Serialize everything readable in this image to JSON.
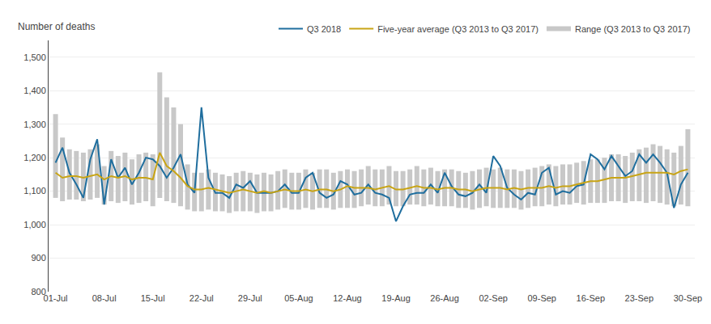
{
  "chart_data": {
    "type": "line",
    "ylabel": "Number of deaths",
    "categories": [
      "01-Jul",
      null,
      null,
      null,
      null,
      null,
      null,
      "08-Jul",
      null,
      null,
      null,
      null,
      null,
      null,
      "15-Jul",
      null,
      null,
      null,
      null,
      null,
      null,
      "22-Jul",
      null,
      null,
      null,
      null,
      null,
      null,
      "29-Jul",
      null,
      null,
      null,
      null,
      null,
      null,
      "05-Aug",
      null,
      null,
      null,
      null,
      null,
      null,
      "12-Aug",
      null,
      null,
      null,
      null,
      null,
      null,
      "19-Aug",
      null,
      null,
      null,
      null,
      null,
      null,
      "26-Aug",
      null,
      null,
      null,
      null,
      null,
      null,
      "02-Sep",
      null,
      null,
      null,
      null,
      null,
      null,
      "09-Sep",
      null,
      null,
      null,
      null,
      null,
      null,
      "16-Sep",
      null,
      null,
      null,
      null,
      null,
      null,
      "23-Sep",
      null,
      null,
      null,
      null,
      null,
      null,
      "30-Sep"
    ],
    "series": [
      {
        "name": "Q3 2018",
        "type": "line",
        "color": "#1f6e9e",
        "values": [
          1185,
          1230,
          1155,
          1120,
          1080,
          1195,
          1255,
          1060,
          1195,
          1140,
          1170,
          1120,
          1155,
          1200,
          1195,
          1175,
          1140,
          1170,
          1210,
          1120,
          1095,
          1350,
          1140,
          1095,
          1095,
          1080,
          1120,
          1110,
          1130,
          1095,
          1095,
          1095,
          1100,
          1120,
          1095,
          1095,
          1140,
          1155,
          1095,
          1080,
          1090,
          1130,
          1120,
          1090,
          1095,
          1120,
          1095,
          1090,
          1080,
          1010,
          1055,
          1090,
          1095,
          1095,
          1120,
          1095,
          1155,
          1115,
          1090,
          1085,
          1095,
          1120,
          1095,
          1205,
          1175,
          1110,
          1090,
          1075,
          1095,
          1090,
          1155,
          1170,
          1090,
          1100,
          1095,
          1115,
          1120,
          1210,
          1195,
          1165,
          1205,
          1175,
          1145,
          1160,
          1210,
          1185,
          1210,
          1185,
          1155,
          1050,
          1120,
          1155
        ]
      },
      {
        "name": "Five-year average (Q3 2013 to Q3 2017)",
        "type": "line",
        "color": "#c8a415",
        "values": [
          1155,
          1140,
          1145,
          1145,
          1140,
          1145,
          1150,
          1135,
          1145,
          1140,
          1145,
          1135,
          1140,
          1140,
          1135,
          1215,
          1175,
          1160,
          1140,
          1115,
          1105,
          1105,
          1110,
          1105,
          1100,
          1095,
          1100,
          1105,
          1100,
          1095,
          1100,
          1095,
          1100,
          1105,
          1100,
          1100,
          1105,
          1100,
          1105,
          1105,
          1100,
          1105,
          1115,
          1110,
          1110,
          1110,
          1105,
          1110,
          1115,
          1105,
          1105,
          1110,
          1115,
          1110,
          1110,
          1105,
          1110,
          1110,
          1105,
          1105,
          1100,
          1105,
          1110,
          1110,
          1110,
          1105,
          1110,
          1105,
          1110,
          1110,
          1110,
          1115,
          1110,
          1115,
          1115,
          1120,
          1125,
          1130,
          1130,
          1135,
          1140,
          1140,
          1140,
          1145,
          1150,
          1155,
          1155,
          1155,
          1155,
          1150,
          1160,
          1165
        ]
      },
      {
        "name": "Range (Q3 2013 to Q3 2017)",
        "type": "range",
        "color": "#c8c8c8",
        "low": [
          1080,
          1070,
          1075,
          1075,
          1070,
          1075,
          1080,
          1060,
          1070,
          1065,
          1070,
          1060,
          1065,
          1070,
          1055,
          1080,
          1070,
          1065,
          1055,
          1045,
          1040,
          1040,
          1045,
          1040,
          1040,
          1035,
          1040,
          1040,
          1040,
          1035,
          1040,
          1040,
          1045,
          1050,
          1045,
          1045,
          1050,
          1045,
          1050,
          1050,
          1045,
          1050,
          1050,
          1050,
          1055,
          1060,
          1055,
          1055,
          1060,
          1055,
          1055,
          1060,
          1060,
          1055,
          1060,
          1055,
          1055,
          1055,
          1050,
          1050,
          1045,
          1050,
          1055,
          1050,
          1050,
          1050,
          1050,
          1045,
          1050,
          1055,
          1055,
          1060,
          1055,
          1060,
          1060,
          1065,
          1060,
          1065,
          1065,
          1065,
          1070,
          1070,
          1065,
          1070,
          1070,
          1065,
          1070,
          1065,
          1060,
          1055,
          1060,
          1055
        ],
        "high": [
          1330,
          1260,
          1225,
          1220,
          1215,
          1225,
          1240,
          1175,
          1220,
          1205,
          1215,
          1195,
          1210,
          1215,
          1210,
          1455,
          1380,
          1350,
          1300,
          1180,
          1155,
          1155,
          1165,
          1155,
          1150,
          1145,
          1155,
          1160,
          1155,
          1150,
          1155,
          1150,
          1160,
          1165,
          1155,
          1155,
          1165,
          1155,
          1165,
          1165,
          1155,
          1160,
          1165,
          1160,
          1165,
          1175,
          1165,
          1165,
          1175,
          1160,
          1160,
          1165,
          1175,
          1165,
          1170,
          1160,
          1165,
          1165,
          1160,
          1155,
          1160,
          1165,
          1170,
          1165,
          1170,
          1165,
          1165,
          1160,
          1165,
          1170,
          1175,
          1180,
          1175,
          1180,
          1180,
          1185,
          1190,
          1195,
          1195,
          1200,
          1210,
          1210,
          1205,
          1215,
          1225,
          1230,
          1240,
          1235,
          1225,
          1215,
          1235,
          1285
        ]
      }
    ],
    "ylim": [
      800,
      1550
    ],
    "yticks": [
      800,
      900,
      {
        "value": 1000,
        "label": "1,000"
      },
      {
        "value": 1100,
        "label": "1,100"
      },
      {
        "value": 1200,
        "label": "1,200"
      },
      {
        "value": 1300,
        "label": "1,300"
      },
      {
        "value": 1400,
        "label": "1,400"
      },
      {
        "value": 1500,
        "label": "1,500"
      }
    ],
    "grid": true,
    "legend": "top"
  }
}
